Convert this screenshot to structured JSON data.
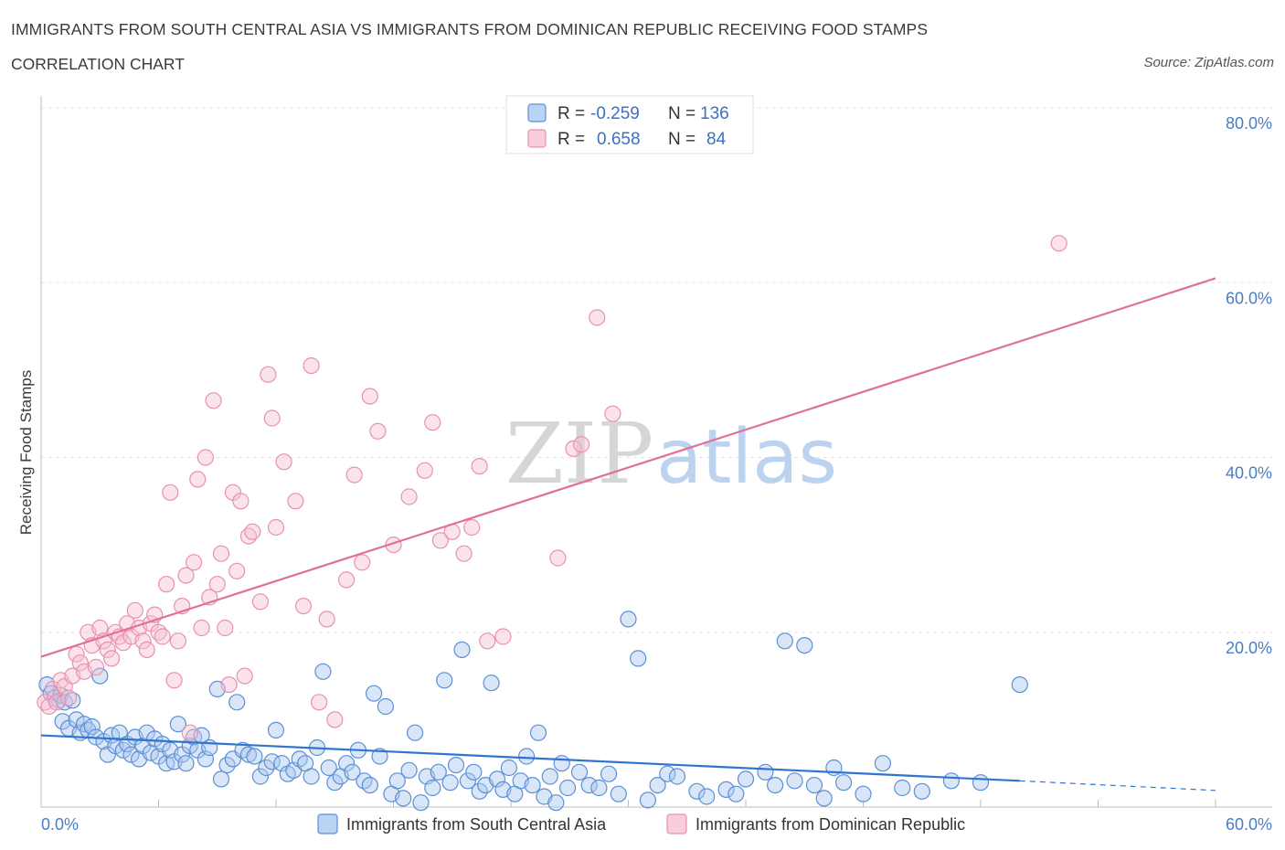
{
  "header": {
    "title": "IMMIGRANTS FROM SOUTH CENTRAL ASIA VS IMMIGRANTS FROM DOMINICAN REPUBLIC RECEIVING FOOD STAMPS",
    "subtitle": "CORRELATION CHART",
    "source": "Source: ZipAtlas.com"
  },
  "watermark": {
    "zip": "ZIP",
    "atlas": "atlas"
  },
  "colors": {
    "blue_fill": "#aac8f0",
    "blue_stroke": "#5b8fd6",
    "blue_line": "#2f74d0",
    "pink_fill": "#f6c2d3",
    "pink_stroke": "#e891ad",
    "pink_line": "#e0709a",
    "grid": "#e3e3e3",
    "axis_label": "#4a7cc7"
  },
  "legend": {
    "rows": [
      {
        "r_label": "R =",
        "r_value": "-0.259",
        "n_label": "N =",
        "n_value": "136"
      },
      {
        "r_label": "R =",
        "r_value": "0.658",
        "n_label": "N =",
        "n_value": "84"
      }
    ]
  },
  "chart_data": {
    "type": "scatter",
    "title": "IMMIGRANTS FROM SOUTH CENTRAL ASIA VS IMMIGRANTS FROM DOMINICAN REPUBLIC RECEIVING FOOD STAMPS",
    "subtitle": "CORRELATION CHART",
    "xlabel": "",
    "ylabel": "Receiving Food Stamps",
    "xlim": [
      0,
      60
    ],
    "ylim": [
      0,
      80
    ],
    "x_tick_labels": [
      "0.0%",
      "60.0%"
    ],
    "y_tick_labels": [
      "20.0%",
      "40.0%",
      "60.0%",
      "80.0%"
    ],
    "y_ticks": [
      20,
      40,
      60,
      80
    ],
    "grid": true,
    "legend_position": "top-center",
    "series": [
      {
        "name": "Immigrants from South Central Asia",
        "color": "#5b8fd6",
        "R": -0.259,
        "N": 136,
        "trend": {
          "x0": 0,
          "y0": 8.2,
          "x1": 50,
          "y1": 3.0,
          "dashed_to_x": 60,
          "dashed_to_y": 1.9
        },
        "points": [
          [
            0.3,
            14.0
          ],
          [
            0.5,
            13.0
          ],
          [
            0.7,
            12.5
          ],
          [
            0.9,
            12.2
          ],
          [
            1.0,
            12.8
          ],
          [
            1.1,
            9.8
          ],
          [
            1.2,
            12.0
          ],
          [
            1.4,
            9.0
          ],
          [
            1.6,
            12.2
          ],
          [
            1.8,
            10.0
          ],
          [
            2.0,
            8.5
          ],
          [
            2.2,
            9.5
          ],
          [
            2.4,
            8.8
          ],
          [
            2.6,
            9.2
          ],
          [
            2.8,
            8.0
          ],
          [
            3.0,
            15.0
          ],
          [
            3.2,
            7.5
          ],
          [
            3.4,
            6.0
          ],
          [
            3.6,
            8.2
          ],
          [
            3.8,
            7.0
          ],
          [
            4.0,
            8.5
          ],
          [
            4.2,
            6.5
          ],
          [
            4.4,
            7.2
          ],
          [
            4.6,
            6.0
          ],
          [
            4.8,
            8.0
          ],
          [
            5.0,
            5.5
          ],
          [
            5.2,
            7.0
          ],
          [
            5.4,
            8.5
          ],
          [
            5.6,
            6.2
          ],
          [
            5.8,
            7.8
          ],
          [
            6.0,
            5.8
          ],
          [
            6.2,
            7.2
          ],
          [
            6.4,
            5.0
          ],
          [
            6.6,
            6.5
          ],
          [
            6.8,
            5.2
          ],
          [
            7.0,
            9.5
          ],
          [
            7.2,
            6.0
          ],
          [
            7.4,
            5.0
          ],
          [
            7.6,
            7.0
          ],
          [
            7.8,
            8.0
          ],
          [
            8.0,
            6.5
          ],
          [
            8.2,
            8.2
          ],
          [
            8.4,
            5.5
          ],
          [
            8.6,
            6.8
          ],
          [
            9.0,
            13.5
          ],
          [
            9.2,
            3.2
          ],
          [
            9.5,
            4.8
          ],
          [
            9.8,
            5.5
          ],
          [
            10.0,
            12.0
          ],
          [
            10.3,
            6.5
          ],
          [
            10.6,
            6.0
          ],
          [
            10.9,
            5.8
          ],
          [
            11.2,
            3.5
          ],
          [
            11.5,
            4.5
          ],
          [
            11.8,
            5.2
          ],
          [
            12.0,
            8.8
          ],
          [
            12.3,
            5.0
          ],
          [
            12.6,
            3.8
          ],
          [
            12.9,
            4.2
          ],
          [
            13.2,
            5.5
          ],
          [
            13.5,
            5.0
          ],
          [
            13.8,
            3.5
          ],
          [
            14.1,
            6.8
          ],
          [
            14.4,
            15.5
          ],
          [
            14.7,
            4.5
          ],
          [
            15.0,
            2.8
          ],
          [
            15.3,
            3.5
          ],
          [
            15.6,
            5.0
          ],
          [
            15.9,
            4.0
          ],
          [
            16.2,
            6.5
          ],
          [
            16.5,
            3.0
          ],
          [
            16.8,
            2.5
          ],
          [
            17.0,
            13.0
          ],
          [
            17.3,
            5.8
          ],
          [
            17.6,
            11.5
          ],
          [
            17.9,
            1.5
          ],
          [
            18.2,
            3.0
          ],
          [
            18.5,
            1.0
          ],
          [
            18.8,
            4.2
          ],
          [
            19.1,
            8.5
          ],
          [
            19.4,
            0.5
          ],
          [
            19.7,
            3.5
          ],
          [
            20.0,
            2.2
          ],
          [
            20.3,
            4.0
          ],
          [
            20.6,
            14.5
          ],
          [
            20.9,
            2.8
          ],
          [
            21.2,
            4.8
          ],
          [
            21.5,
            18.0
          ],
          [
            21.8,
            3.0
          ],
          [
            22.1,
            4.0
          ],
          [
            22.4,
            1.8
          ],
          [
            22.7,
            2.5
          ],
          [
            23.0,
            14.2
          ],
          [
            23.3,
            3.2
          ],
          [
            23.6,
            2.0
          ],
          [
            23.9,
            4.5
          ],
          [
            24.2,
            1.5
          ],
          [
            24.5,
            3.0
          ],
          [
            24.8,
            5.8
          ],
          [
            25.1,
            2.5
          ],
          [
            25.4,
            8.5
          ],
          [
            25.7,
            1.2
          ],
          [
            26.0,
            3.5
          ],
          [
            26.3,
            0.5
          ],
          [
            26.6,
            5.0
          ],
          [
            26.9,
            2.2
          ],
          [
            27.5,
            4.0
          ],
          [
            28.0,
            2.5
          ],
          [
            28.5,
            2.2
          ],
          [
            29.0,
            3.8
          ],
          [
            29.5,
            1.5
          ],
          [
            30.0,
            21.5
          ],
          [
            30.5,
            17.0
          ],
          [
            31.0,
            0.8
          ],
          [
            31.5,
            2.5
          ],
          [
            32.0,
            3.8
          ],
          [
            32.5,
            3.5
          ],
          [
            33.5,
            1.8
          ],
          [
            34.0,
            1.2
          ],
          [
            35.0,
            2.0
          ],
          [
            35.5,
            1.5
          ],
          [
            36.0,
            3.2
          ],
          [
            37.0,
            4.0
          ],
          [
            37.5,
            2.5
          ],
          [
            38.0,
            19.0
          ],
          [
            38.5,
            3.0
          ],
          [
            39.0,
            18.5
          ],
          [
            39.5,
            2.5
          ],
          [
            40.0,
            1.0
          ],
          [
            40.5,
            4.5
          ],
          [
            41.0,
            2.8
          ],
          [
            42.0,
            1.5
          ],
          [
            43.0,
            5.0
          ],
          [
            44.0,
            2.2
          ],
          [
            45.0,
            1.8
          ],
          [
            46.5,
            3.0
          ],
          [
            48.0,
            2.8
          ],
          [
            50.0,
            14.0
          ]
        ]
      },
      {
        "name": "Immigrants from Dominican Republic",
        "color": "#e891ad",
        "R": 0.658,
        "N": 84,
        "trend": {
          "x0": 0,
          "y0": 17.2,
          "x1": 60,
          "y1": 60.5
        },
        "points": [
          [
            0.2,
            12.0
          ],
          [
            0.4,
            11.5
          ],
          [
            0.6,
            13.5
          ],
          [
            0.8,
            12.0
          ],
          [
            1.0,
            14.5
          ],
          [
            1.2,
            13.8
          ],
          [
            1.4,
            12.5
          ],
          [
            1.6,
            15.0
          ],
          [
            1.8,
            17.5
          ],
          [
            2.0,
            16.5
          ],
          [
            2.2,
            15.5
          ],
          [
            2.4,
            20.0
          ],
          [
            2.6,
            18.5
          ],
          [
            2.8,
            16.0
          ],
          [
            3.0,
            20.5
          ],
          [
            3.2,
            19.0
          ],
          [
            3.4,
            18.0
          ],
          [
            3.6,
            17.0
          ],
          [
            3.8,
            20.0
          ],
          [
            4.0,
            19.5
          ],
          [
            4.2,
            18.8
          ],
          [
            4.4,
            21.0
          ],
          [
            4.6,
            19.5
          ],
          [
            4.8,
            22.5
          ],
          [
            5.0,
            20.5
          ],
          [
            5.2,
            19.0
          ],
          [
            5.4,
            18.0
          ],
          [
            5.6,
            21.0
          ],
          [
            5.8,
            22.0
          ],
          [
            6.0,
            20.0
          ],
          [
            6.2,
            19.5
          ],
          [
            6.4,
            25.5
          ],
          [
            6.6,
            36.0
          ],
          [
            6.8,
            14.5
          ],
          [
            7.0,
            19.0
          ],
          [
            7.2,
            23.0
          ],
          [
            7.4,
            26.5
          ],
          [
            7.6,
            8.5
          ],
          [
            7.8,
            28.0
          ],
          [
            8.0,
            37.5
          ],
          [
            8.2,
            20.5
          ],
          [
            8.4,
            40.0
          ],
          [
            8.6,
            24.0
          ],
          [
            8.8,
            46.5
          ],
          [
            9.0,
            25.5
          ],
          [
            9.2,
            29.0
          ],
          [
            9.4,
            20.5
          ],
          [
            9.6,
            14.0
          ],
          [
            9.8,
            36.0
          ],
          [
            10.0,
            27.0
          ],
          [
            10.2,
            35.0
          ],
          [
            10.4,
            15.0
          ],
          [
            10.6,
            31.0
          ],
          [
            10.8,
            31.5
          ],
          [
            11.2,
            23.5
          ],
          [
            11.6,
            49.5
          ],
          [
            11.8,
            44.5
          ],
          [
            12.0,
            32.0
          ],
          [
            12.4,
            39.5
          ],
          [
            13.0,
            35.0
          ],
          [
            13.4,
            23.0
          ],
          [
            13.8,
            50.5
          ],
          [
            14.2,
            12.0
          ],
          [
            14.6,
            21.5
          ],
          [
            15.0,
            10.0
          ],
          [
            15.6,
            26.0
          ],
          [
            16.0,
            38.0
          ],
          [
            16.4,
            28.0
          ],
          [
            16.8,
            47.0
          ],
          [
            17.2,
            43.0
          ],
          [
            18.0,
            30.0
          ],
          [
            18.8,
            35.5
          ],
          [
            19.6,
            38.5
          ],
          [
            20.0,
            44.0
          ],
          [
            20.4,
            30.5
          ],
          [
            21.0,
            31.5
          ],
          [
            21.6,
            29.0
          ],
          [
            22.0,
            32.0
          ],
          [
            22.4,
            39.0
          ],
          [
            22.8,
            19.0
          ],
          [
            23.6,
            19.5
          ],
          [
            26.4,
            28.5
          ],
          [
            27.2,
            41.0
          ],
          [
            27.6,
            41.5
          ],
          [
            28.4,
            56.0
          ],
          [
            29.2,
            45.0
          ],
          [
            52.0,
            64.5
          ]
        ]
      }
    ]
  },
  "bottom_legend": {
    "items": [
      {
        "label": "Immigrants from South Central Asia"
      },
      {
        "label": "Immigrants from Dominican Republic"
      }
    ]
  }
}
